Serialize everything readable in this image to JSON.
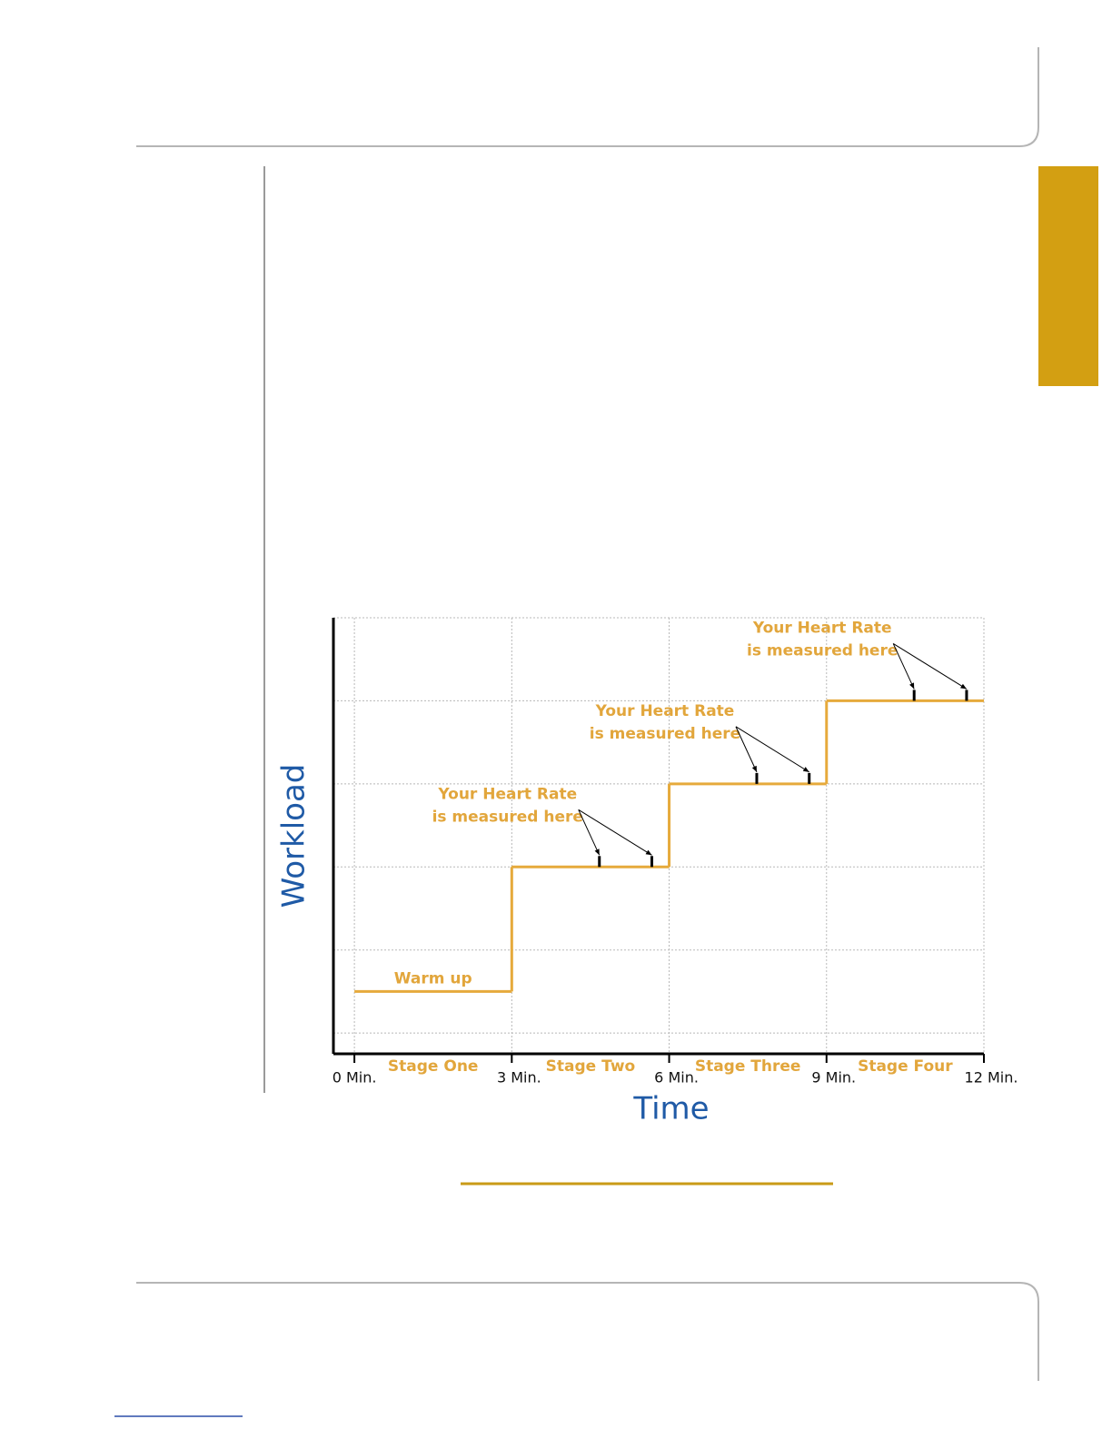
{
  "chart_data": {
    "type": "step",
    "x_label": "Time",
    "y_label": "Workload",
    "x": [
      0,
      3,
      6,
      9
    ],
    "values": [
      0.5,
      2,
      3,
      4
    ],
    "color": "#e6aa3c",
    "step_label": "Warm up",
    "stages": [
      "Stage One",
      "Stage Two",
      "Stage Three",
      "Stage Four"
    ],
    "annotations": [
      {
        "text": [
          "Your Heart Rate",
          "is measured here"
        ],
        "x": [
          4.67,
          5.67
        ]
      },
      {
        "text": [
          "Your Heart Rate",
          "is measured here"
        ],
        "x": [
          7.67,
          8.67
        ]
      },
      {
        "text": [
          "Your Heart Rate",
          "is measured here"
        ],
        "x": [
          10.67,
          11.67
        ]
      }
    ],
    "xlim": [
      -0.4,
      12
    ],
    "ylim": [
      -0.25,
      5
    ],
    "xticks": [
      {
        "value": 0,
        "label": "0 Min."
      },
      {
        "value": 3,
        "label": "3 Min."
      },
      {
        "value": 6,
        "label": "6 Min."
      },
      {
        "value": 9,
        "label": "9 Min."
      },
      {
        "value": 12,
        "label": "12 Min."
      }
    ],
    "yticks": [
      0,
      1,
      2,
      3,
      4,
      5
    ],
    "grid": true
  }
}
